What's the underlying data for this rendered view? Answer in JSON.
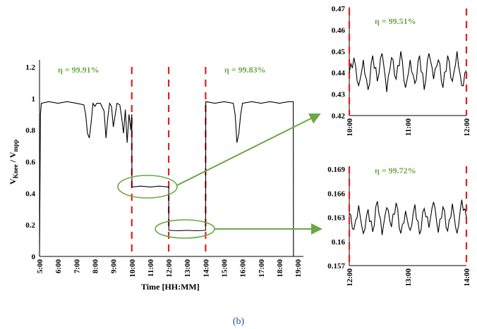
{
  "caption": "(b)",
  "chart_data": [
    {
      "type": "line",
      "panel": "main",
      "title": "",
      "xlabel": "Time [HH:MM]",
      "ylabel": "V_Knee / V_mpp",
      "ylabel_main": "V",
      "ylabel_sub1": "Knee",
      "ylabel_slash": " / V",
      "ylabel_sub2": "mpp",
      "xlim": [
        5,
        19.3
      ],
      "ylim": [
        0,
        1.2
      ],
      "x_tick_labels": [
        "5:00",
        "6:00",
        "7:00",
        "8:00",
        "9:00",
        "10:00",
        "11:00",
        "12:00",
        "13:00",
        "14:00",
        "15:00",
        "16:00",
        "17:00",
        "18:00",
        "19:00"
      ],
      "y_tick_labels": [
        "0",
        "0.2",
        "0.4",
        "0.6",
        "0.8",
        "1",
        "1.2"
      ],
      "red_dashed_lines_x": [
        10,
        12,
        14
      ],
      "annotations": [
        {
          "text": "η = 99.91%",
          "x": 7.5,
          "y": 1.15
        },
        {
          "text": "η = 99.83%",
          "x": 16.5,
          "y": 1.15
        }
      ],
      "series": [
        {
          "x": [
            5.0,
            5.05,
            5.1,
            5.5,
            6.0,
            6.5,
            7.0,
            7.4,
            7.5,
            7.6,
            7.7,
            7.8,
            7.9,
            8.0,
            8.1,
            8.3,
            8.5,
            8.6,
            8.7,
            8.8,
            8.9,
            9.0,
            9.2,
            9.35,
            9.45,
            9.55,
            9.65,
            9.75,
            9.85,
            9.95,
            10.0,
            10.01,
            10.5,
            11.0,
            11.5,
            11.99,
            12.0,
            12.01,
            12.5,
            13.0,
            13.5,
            13.99,
            14.0,
            14.01,
            14.5,
            15.0,
            15.5,
            15.6,
            15.7,
            15.8,
            15.9,
            16.0,
            16.5,
            17.0,
            17.5,
            18.0,
            18.5,
            18.75,
            18.76,
            18.8
          ],
          "y": [
            0.0,
            0.9,
            0.97,
            0.98,
            0.97,
            0.98,
            0.97,
            0.96,
            0.9,
            0.78,
            0.75,
            0.85,
            0.97,
            0.95,
            0.97,
            0.97,
            0.92,
            0.75,
            0.88,
            0.97,
            0.95,
            0.82,
            0.97,
            0.96,
            0.88,
            0.78,
            0.93,
            0.72,
            0.9,
            0.8,
            0.9,
            0.44,
            0.445,
            0.44,
            0.445,
            0.44,
            0.44,
            0.165,
            0.163,
            0.165,
            0.163,
            0.165,
            0.165,
            0.98,
            0.97,
            0.98,
            0.97,
            0.9,
            0.72,
            0.78,
            0.9,
            0.97,
            0.98,
            0.97,
            0.98,
            0.97,
            0.98,
            0.98,
            0.0,
            0.0
          ]
        }
      ]
    },
    {
      "type": "line",
      "panel": "zoom-top",
      "title": "",
      "eta_label": "η = 99.51%",
      "xlim": [
        10,
        12
      ],
      "ylim": [
        0.42,
        0.47
      ],
      "x_tick_labels": [
        "10:00",
        "11:00",
        "12:00"
      ],
      "y_tick_labels": [
        "0.42",
        "0.43",
        "0.44",
        "0.45",
        "0.46",
        "0.47"
      ],
      "red_dashed_lines_x": [
        10,
        12
      ],
      "series": [
        {
          "x": [
            10.0,
            10.08,
            10.16,
            10.24,
            10.32,
            10.4,
            10.48,
            10.56,
            10.64,
            10.72,
            10.8,
            10.88,
            10.96,
            11.04,
            11.12,
            11.2,
            11.28,
            11.36,
            11.44,
            11.52,
            11.6,
            11.68,
            11.76,
            11.84,
            11.92,
            12.0
          ],
          "y": [
            0.44,
            0.447,
            0.434,
            0.446,
            0.432,
            0.448,
            0.436,
            0.449,
            0.431,
            0.447,
            0.437,
            0.45,
            0.433,
            0.446,
            0.435,
            0.448,
            0.432,
            0.449,
            0.437,
            0.446,
            0.433,
            0.448,
            0.436,
            0.45,
            0.434,
            0.441
          ]
        }
      ]
    },
    {
      "type": "line",
      "panel": "zoom-bottom",
      "title": "",
      "eta_label": "η = 99.72%",
      "xlim": [
        12,
        14
      ],
      "ylim": [
        0.157,
        0.169
      ],
      "x_tick_labels": [
        "12:00",
        "13:00",
        "14:00"
      ],
      "y_tick_labels": [
        "0.157",
        "0.16",
        "0.163",
        "0.166",
        "0.169"
      ],
      "red_dashed_lines_x": [
        12,
        14
      ],
      "series": [
        {
          "x": [
            12.0,
            12.08,
            12.16,
            12.24,
            12.32,
            12.4,
            12.48,
            12.56,
            12.64,
            12.72,
            12.8,
            12.88,
            12.96,
            13.04,
            13.12,
            13.2,
            13.28,
            13.36,
            13.44,
            13.52,
            13.6,
            13.68,
            13.76,
            13.84,
            13.92,
            14.0
          ],
          "y": [
            0.1635,
            0.1615,
            0.1645,
            0.161,
            0.164,
            0.1612,
            0.165,
            0.1608,
            0.1642,
            0.1618,
            0.1648,
            0.161,
            0.1638,
            0.1614,
            0.1646,
            0.1609,
            0.1641,
            0.1617,
            0.1649,
            0.1611,
            0.1643,
            0.1613,
            0.1647,
            0.161,
            0.1652,
            0.163
          ]
        }
      ]
    }
  ]
}
